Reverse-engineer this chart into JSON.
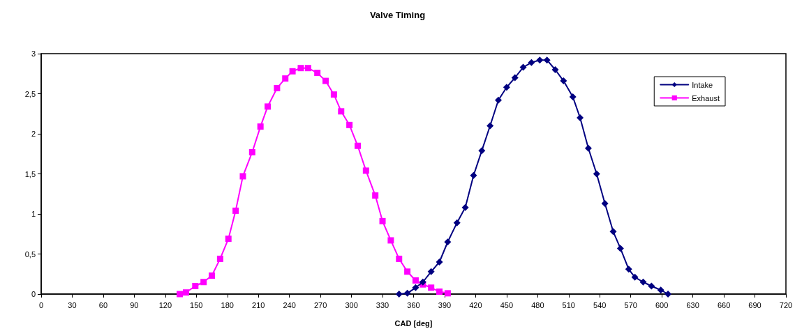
{
  "chart_data": {
    "type": "line",
    "title": "Valve Timing",
    "xlabel": "CAD [deg]",
    "xlim": [
      0,
      720
    ],
    "xticks": [
      0,
      30,
      60,
      90,
      120,
      150,
      180,
      210,
      240,
      270,
      300,
      330,
      360,
      390,
      420,
      450,
      480,
      510,
      540,
      570,
      600,
      630,
      660,
      690,
      720
    ],
    "ylim": [
      0,
      3
    ],
    "yticks": [
      0,
      {
        "value": 0.5,
        "label": "0,5"
      },
      1,
      {
        "value": 1.5,
        "label": "1,5"
      },
      2,
      {
        "value": 2.5,
        "label": "2,5"
      },
      3
    ],
    "grid": false,
    "legend": "top right",
    "line_style": "solid",
    "series": [
      {
        "name": "Intake",
        "color": "#000080",
        "marker": "diamond",
        "x": [
          346,
          354,
          362,
          369,
          377,
          385,
          393,
          402,
          410,
          418,
          426,
          434,
          442,
          450,
          458,
          466,
          474,
          482,
          489,
          497,
          505,
          514,
          521,
          529,
          537,
          545,
          553,
          560,
          568,
          574,
          582,
          590,
          599,
          606
        ],
        "values": [
          0,
          0.01,
          0.08,
          0.15,
          0.28,
          0.4,
          0.65,
          0.89,
          1.08,
          1.48,
          1.79,
          2.1,
          2.42,
          2.58,
          2.7,
          2.83,
          2.89,
          2.92,
          2.92,
          2.8,
          2.66,
          2.46,
          2.2,
          1.82,
          1.5,
          1.13,
          0.78,
          0.57,
          0.31,
          0.21,
          0.15,
          0.1,
          0.05,
          0
        ]
      },
      {
        "name": "Exhaust",
        "color": "#ff00ff",
        "marker": "square",
        "x": [
          134,
          140,
          149,
          157,
          165,
          173,
          181,
          188,
          195,
          204,
          212,
          219,
          228,
          236,
          243,
          251,
          258,
          267,
          275,
          283,
          290,
          298,
          306,
          314,
          323,
          330,
          338,
          346,
          354,
          362,
          369,
          377,
          385,
          393
        ],
        "values": [
          0,
          0.02,
          0.1,
          0.15,
          0.23,
          0.44,
          0.69,
          1.04,
          1.47,
          1.77,
          2.09,
          2.34,
          2.57,
          2.69,
          2.78,
          2.82,
          2.82,
          2.76,
          2.66,
          2.49,
          2.28,
          2.11,
          1.85,
          1.54,
          1.23,
          0.91,
          0.67,
          0.44,
          0.28,
          0.17,
          0.12,
          0.08,
          0.03,
          0.01
        ]
      }
    ]
  }
}
